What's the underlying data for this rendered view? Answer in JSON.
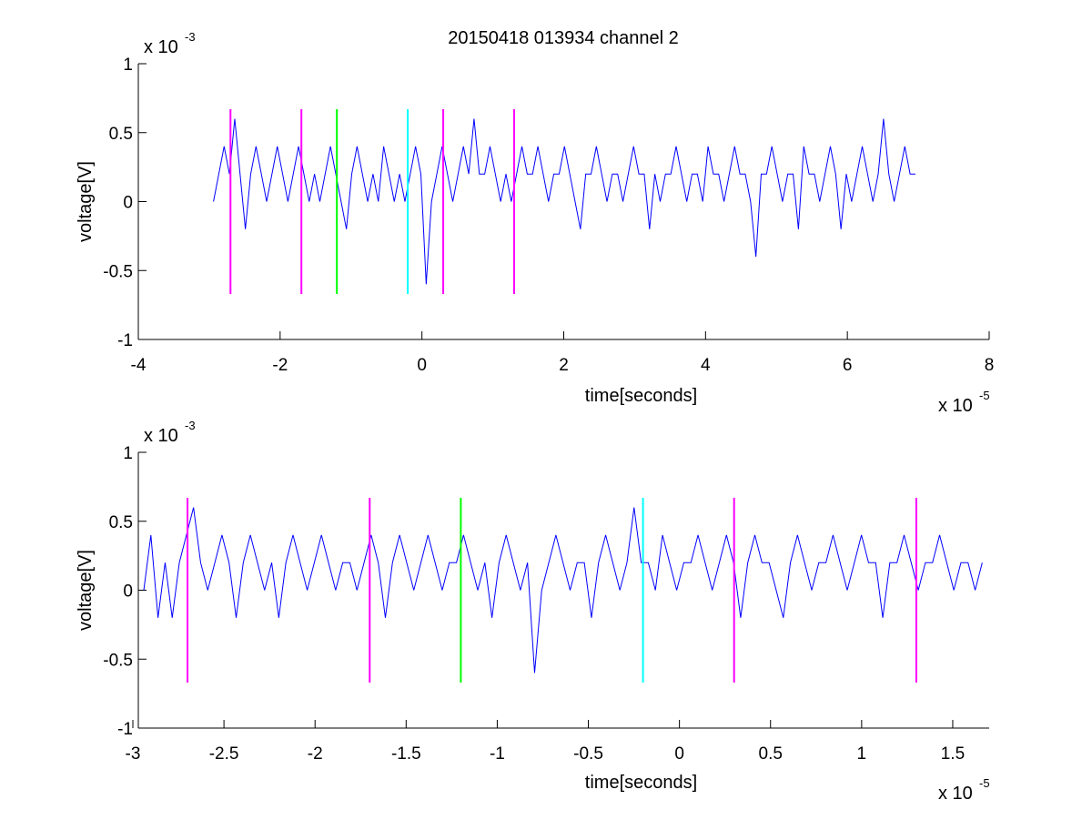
{
  "figure": {
    "title": "20150418 013934 channel 2"
  },
  "chart_data": [
    {
      "type": "line",
      "xlabel": "time[seconds]",
      "ylabel": "voltage[V]",
      "x_exponent": "x 10",
      "x_exponent_power": "-5",
      "y_exponent": "x 10",
      "y_exponent_power": "-3",
      "xlim": [
        -4e-05,
        8e-05
      ],
      "ylim": [
        -0.001,
        0.001
      ],
      "x_ticks": [
        -4,
        -2,
        0,
        2,
        4,
        6,
        8
      ],
      "x_tick_labels": [
        "-4",
        "-2",
        "0",
        "2",
        "4",
        "6",
        "8"
      ],
      "y_ticks": [
        -1,
        -0.5,
        0,
        0.5,
        1
      ],
      "y_tick_labels": [
        "-1",
        "-0.5",
        "0",
        "0.5",
        "1"
      ],
      "grid": false,
      "series": [
        {
          "color": "#0000ff",
          "x_range": [
            -2.94e-05,
            7e-05
          ],
          "values_mV": [
            0,
            0.2,
            0.4,
            0.2,
            0.6,
            0.2,
            -0.2,
            0.2,
            0.4,
            0.2,
            0,
            0.2,
            0.4,
            0.2,
            0,
            0.2,
            0.4,
            0.2,
            0,
            0.2,
            0,
            0.2,
            0.4,
            0.2,
            0,
            -0.2,
            0.2,
            0.4,
            0.2,
            0,
            0.2,
            0,
            0.4,
            0.2,
            0,
            0.2,
            0,
            0.2,
            0.4,
            0.2,
            -0.6,
            0,
            0.2,
            0.4,
            0.2,
            0,
            0.2,
            0.4,
            0.2,
            0.6,
            0.2,
            0.2,
            0.4,
            0.2,
            0,
            0.2,
            0,
            0.2,
            0.4,
            0.2,
            0.2,
            0.4,
            0.2,
            0,
            0.2,
            0.2,
            0.4,
            0.2,
            0,
            -0.2,
            0.2,
            0.2,
            0.4,
            0.2,
            0,
            0.2,
            0.2,
            0,
            0.2,
            0.4,
            0.2,
            0.2,
            -0.2,
            0.2,
            0,
            0.2,
            0.2,
            0.4,
            0.2,
            0,
            0.2,
            0.2,
            0,
            0.4,
            0.2,
            0.2,
            0,
            0.2,
            0.4,
            0.2,
            0.2,
            0,
            -0.4,
            0.2,
            0.2,
            0.4,
            0.2,
            0,
            0.2,
            0.2,
            -0.2,
            0.4,
            0.2,
            0.2,
            0,
            0.2,
            0.4,
            0.2,
            -0.2,
            0.2,
            0,
            0.2,
            0.4,
            0.2,
            0,
            0.2,
            0.6,
            0.2,
            0,
            0.2,
            0.4,
            0.2,
            0.2
          ],
          "sample_step": 7.5e-07
        }
      ],
      "markers": [
        {
          "x": -2.7e-05,
          "color": "#ff00ff",
          "y_range_mV": [
            -0.67,
            0.67
          ]
        },
        {
          "x": -1.7e-05,
          "color": "#ff00ff",
          "y_range_mV": [
            -0.67,
            0.67
          ]
        },
        {
          "x": -1.2e-05,
          "color": "#00ff00",
          "y_range_mV": [
            -0.67,
            0.67
          ]
        },
        {
          "x": -2e-06,
          "color": "#00ffff",
          "y_range_mV": [
            -0.67,
            0.67
          ]
        },
        {
          "x": 3e-06,
          "color": "#ff00ff",
          "y_range_mV": [
            -0.67,
            0.67
          ]
        },
        {
          "x": 1.3e-05,
          "color": "#ff00ff",
          "y_range_mV": [
            -0.67,
            0.67
          ]
        }
      ]
    },
    {
      "type": "line",
      "xlabel": "time[seconds]",
      "ylabel": "voltage[V]",
      "x_exponent": "x 10",
      "x_exponent_power": "-5",
      "y_exponent": "x 10",
      "y_exponent_power": "-3",
      "xlim": [
        -2.97e-05,
        1.7e-05
      ],
      "ylim": [
        -0.001,
        0.001
      ],
      "x_ticks": [
        -3,
        -2.5,
        -2,
        -1.5,
        -1,
        -0.5,
        0,
        0.5,
        1,
        1.5
      ],
      "x_tick_labels": [
        "-3",
        "-2.5",
        "-2",
        "-1.5",
        "-1",
        "-0.5",
        "0",
        "0.5",
        "1",
        "1.5"
      ],
      "y_ticks": [
        -1,
        -0.5,
        0,
        0.5,
        1
      ],
      "y_tick_labels": [
        "-1",
        "-0.5",
        "0",
        "0.5",
        "1"
      ],
      "grid": false,
      "series": [
        {
          "color": "#0000ff",
          "x_range": [
            -2.94e-05,
            1.7e-05
          ],
          "values_mV": [
            0,
            0.4,
            -0.2,
            0.2,
            -0.2,
            0.2,
            0.4,
            0.6,
            0.2,
            0,
            0.2,
            0.4,
            0.2,
            -0.2,
            0.2,
            0.4,
            0.2,
            0,
            0.2,
            -0.2,
            0.2,
            0.4,
            0.2,
            0,
            0.2,
            0.4,
            0.2,
            0,
            0.2,
            0.2,
            0,
            0.2,
            0.4,
            0.2,
            -0.2,
            0.2,
            0.4,
            0.2,
            0,
            0.2,
            0.4,
            0.2,
            0,
            0.2,
            0.2,
            0.4,
            0.2,
            0,
            0.2,
            -0.2,
            0.2,
            0.4,
            0.2,
            0,
            0.2,
            -0.6,
            0,
            0.2,
            0.4,
            0.2,
            0,
            0.2,
            0.2,
            -0.2,
            0.2,
            0.4,
            0.2,
            0,
            0.2,
            0.6,
            0.2,
            0.2,
            0,
            0.4,
            0.2,
            0,
            0.2,
            0.2,
            0.4,
            0.2,
            0,
            0.2,
            0.4,
            0.2,
            -0.2,
            0.2,
            0.4,
            0.2,
            0.2,
            0,
            -0.2,
            0.2,
            0.4,
            0.2,
            0,
            0.2,
            0.2,
            0.4,
            0.2,
            0,
            0.2,
            0.4,
            0.2,
            0.2,
            -0.2,
            0.2,
            0.2,
            0.4,
            0.2,
            0,
            0.2,
            0.2,
            0.4,
            0.2,
            0,
            0.2,
            0.2,
            0,
            0.2,
            0.2
          ],
          "sample_step": 3.9e-07
        }
      ],
      "markers": [
        {
          "x": -2.7e-05,
          "color": "#ff00ff",
          "y_range_mV": [
            -0.67,
            0.67
          ]
        },
        {
          "x": -1.7e-05,
          "color": "#ff00ff",
          "y_range_mV": [
            -0.67,
            0.67
          ]
        },
        {
          "x": -1.2e-05,
          "color": "#00ff00",
          "y_range_mV": [
            -0.67,
            0.67
          ]
        },
        {
          "x": -2e-06,
          "color": "#00ffff",
          "y_range_mV": [
            -0.67,
            0.67
          ]
        },
        {
          "x": 3e-06,
          "color": "#ff00ff",
          "y_range_mV": [
            -0.67,
            0.67
          ]
        },
        {
          "x": 1.3e-05,
          "color": "#ff00ff",
          "y_range_mV": [
            -0.67,
            0.67
          ]
        }
      ]
    }
  ]
}
